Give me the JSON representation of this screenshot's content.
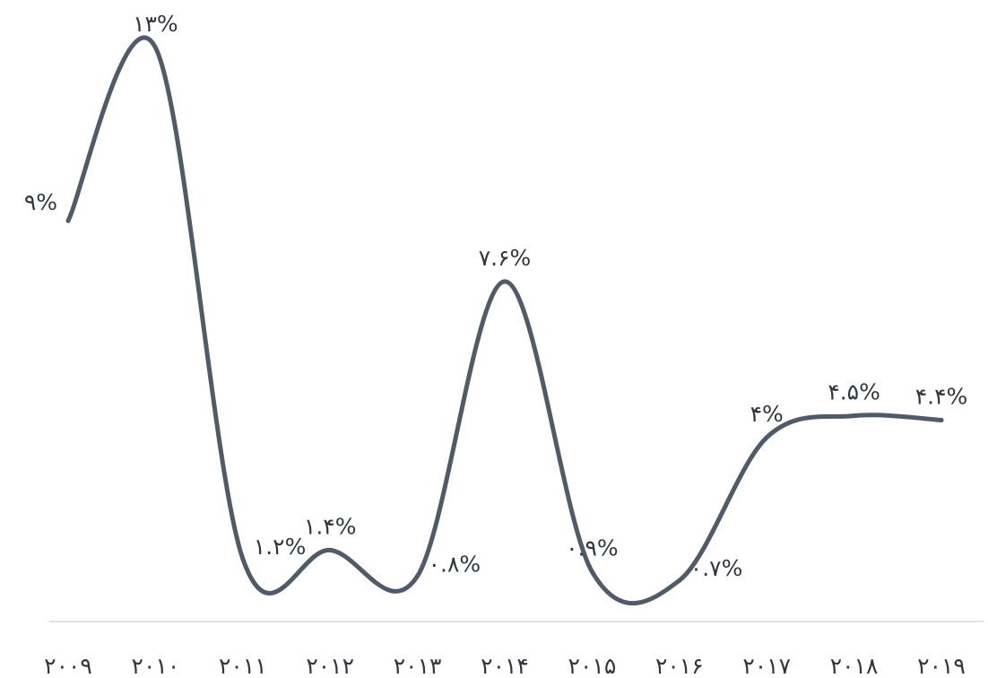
{
  "chart_data": {
    "type": "line",
    "categories": [
      "۲۰۰۹",
      "۲۰۱۰",
      "۲۰۱۱",
      "۲۰۱۲",
      "۲۰۱۳",
      "۲۰۱۴",
      "۲۰۱۵",
      "۲۰۱۶",
      "۲۰۱۷",
      "۲۰۱۸",
      "۲۰۱۹"
    ],
    "series": [
      {
        "values": [
          9,
          13,
          1.2,
          1.4,
          0.8,
          7.6,
          0.9,
          0.7,
          4,
          4.5,
          4.4
        ],
        "labels": [
          "۹%",
          "۱۳%",
          "۱.۲%",
          "۱.۴%",
          "۰.۸%",
          "۷.۶%",
          "۰.۹%",
          "۰.۷%",
          "۴%",
          "۴.۵%",
          "۴.۴%"
        ]
      }
    ],
    "title": "",
    "xlabel": "",
    "ylabel": "",
    "ylim": [
      0,
      13
    ],
    "grid": false,
    "legend": "none",
    "line_color": "#4f5b69",
    "axis_color": "#d9d9d9",
    "text_color": "#2f3640"
  }
}
